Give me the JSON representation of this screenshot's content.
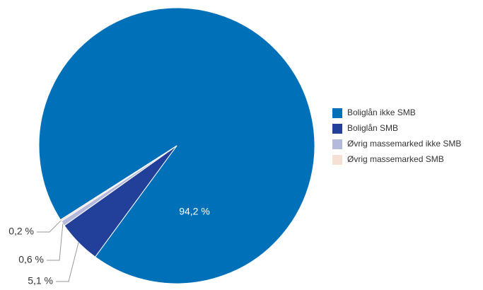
{
  "chart_data": {
    "type": "pie",
    "categories": [
      "Boliglån ikke SMB",
      "Boliglån SMB",
      "Øvrig massemarked ikke SMB",
      "Øvrig massemarked SMB"
    ],
    "values": [
      94.2,
      5.1,
      0.6,
      0.2
    ],
    "value_labels": [
      "94,2 %",
      "5,1 %",
      "0,6 %",
      "0,2 %"
    ],
    "colors": [
      "#0070b8",
      "#223f99",
      "#b5b9dc",
      "#f6dfd3"
    ],
    "legend": "right"
  }
}
